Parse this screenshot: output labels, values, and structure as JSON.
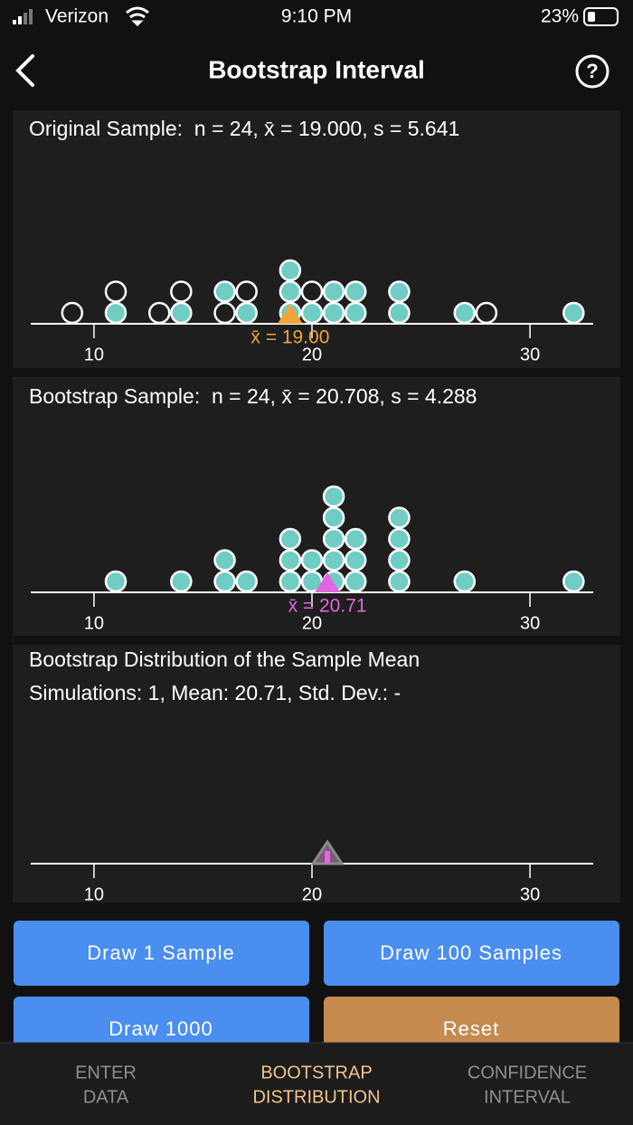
{
  "status_bar": {
    "carrier": "Verizon",
    "time": "9:10 PM",
    "battery": "23%"
  },
  "nav": {
    "title": "Bootstrap Interval"
  },
  "chart_data": [
    {
      "type": "dotplot",
      "title": "Original Sample:  n = 24, x̄ = 19.000, s = 5.641",
      "values": [
        9,
        11,
        11,
        13,
        14,
        14,
        16,
        16,
        17,
        17,
        19,
        19,
        19,
        20,
        20,
        21,
        21,
        22,
        22,
        24,
        24,
        27,
        28,
        32
      ],
      "highlight": [
        false,
        true,
        false,
        false,
        true,
        false,
        false,
        true,
        true,
        false,
        true,
        true,
        true,
        true,
        false,
        true,
        true,
        true,
        true,
        true,
        true,
        true,
        false,
        true
      ],
      "color": "#6fcdc3",
      "mean": 19.0,
      "mean_label": "x̄ = 19.00",
      "mean_color": "#f0a53c",
      "xlim": [
        7.1,
        32.9
      ],
      "xticks": [
        10,
        20,
        30
      ]
    },
    {
      "type": "dotplot",
      "title": "Bootstrap Sample:  n = 24, x̄ = 20.708, s = 4.288",
      "values": [
        11,
        14,
        16,
        16,
        17,
        19,
        19,
        19,
        20,
        20,
        21,
        21,
        21,
        21,
        21,
        22,
        22,
        22,
        24,
        24,
        24,
        24,
        27,
        32
      ],
      "color": "#6fcdc3",
      "mean": 20.708,
      "mean_label": "x̄ = 20.71",
      "mean_color": "#e266e2",
      "xlim": [
        7.1,
        32.9
      ],
      "xticks": [
        10,
        20,
        30
      ]
    },
    {
      "type": "strip",
      "title": "Bootstrap Distribution of the Sample Mean",
      "subtitle": "Simulations: 1, Mean: 20.71, Std. Dev.: -",
      "values": [
        20.708
      ],
      "color": "#e266e2",
      "mean": 20.708,
      "mean_color": "#8a8a8a",
      "xlim": [
        7.1,
        32.9
      ],
      "xticks": [
        10,
        20,
        30
      ]
    }
  ],
  "buttons": [
    "Draw 1 Sample",
    "Draw 100 Samples",
    "Draw 1000",
    "Reset"
  ],
  "tabs": [
    [
      "ENTER",
      "DATA"
    ],
    [
      "BOOTSTRAP",
      "DISTRIBUTION"
    ],
    [
      "CONFIDENCE",
      "INTERVAL"
    ]
  ]
}
